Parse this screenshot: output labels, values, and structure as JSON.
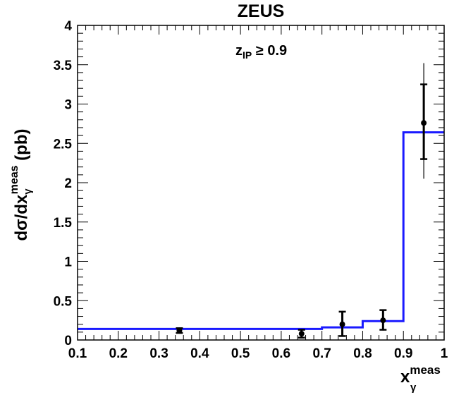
{
  "chart_data": {
    "type": "histogram",
    "title": "ZEUS",
    "annotation": {
      "main": "z",
      "subscript": "IP",
      "relation": " ≥ 0.9"
    },
    "xlabel": {
      "main": "x",
      "subscript": "γ",
      "superscript": "meas"
    },
    "ylabel": {
      "prefix": "dσ/dx",
      "subscript": "γ",
      "superscript": "meas",
      "unit": " (pb)"
    },
    "xlim": [
      0.1,
      1.0
    ],
    "ylim": [
      0,
      4
    ],
    "x_ticks": [
      "0.1",
      "0.2",
      "0.3",
      "0.4",
      "0.5",
      "0.6",
      "0.7",
      "0.8",
      "0.9",
      "1"
    ],
    "y_ticks": [
      "0",
      "0.5",
      "1",
      "1.5",
      "2",
      "2.5",
      "3",
      "3.5",
      "4"
    ],
    "grid": false,
    "histogram": {
      "color": "#1a1aff",
      "bins": [
        {
          "x0": 0.1,
          "x1": 0.7,
          "y": 0.14
        },
        {
          "x0": 0.7,
          "x1": 0.8,
          "y": 0.16
        },
        {
          "x0": 0.8,
          "x1": 0.9,
          "y": 0.24
        },
        {
          "x0": 0.9,
          "x1": 1.0,
          "y": 2.64
        }
      ]
    },
    "points": [
      {
        "x": 0.35,
        "y": 0.12,
        "stat_lo": 0.09,
        "stat_hi": 0.15,
        "tot_lo": 0.08,
        "tot_hi": 0.16
      },
      {
        "x": 0.65,
        "y": 0.08,
        "stat_lo": 0.03,
        "stat_hi": 0.13,
        "tot_lo": 0.02,
        "tot_hi": 0.14
      },
      {
        "x": 0.75,
        "y": 0.2,
        "stat_lo": 0.05,
        "stat_hi": 0.36,
        "tot_lo": 0.04,
        "tot_hi": 0.37
      },
      {
        "x": 0.85,
        "y": 0.25,
        "stat_lo": 0.13,
        "stat_hi": 0.38,
        "tot_lo": 0.12,
        "tot_hi": 0.39
      },
      {
        "x": 0.95,
        "y": 2.76,
        "stat_lo": 2.3,
        "stat_hi": 3.25,
        "tot_lo": 2.05,
        "tot_hi": 3.52
      }
    ]
  }
}
